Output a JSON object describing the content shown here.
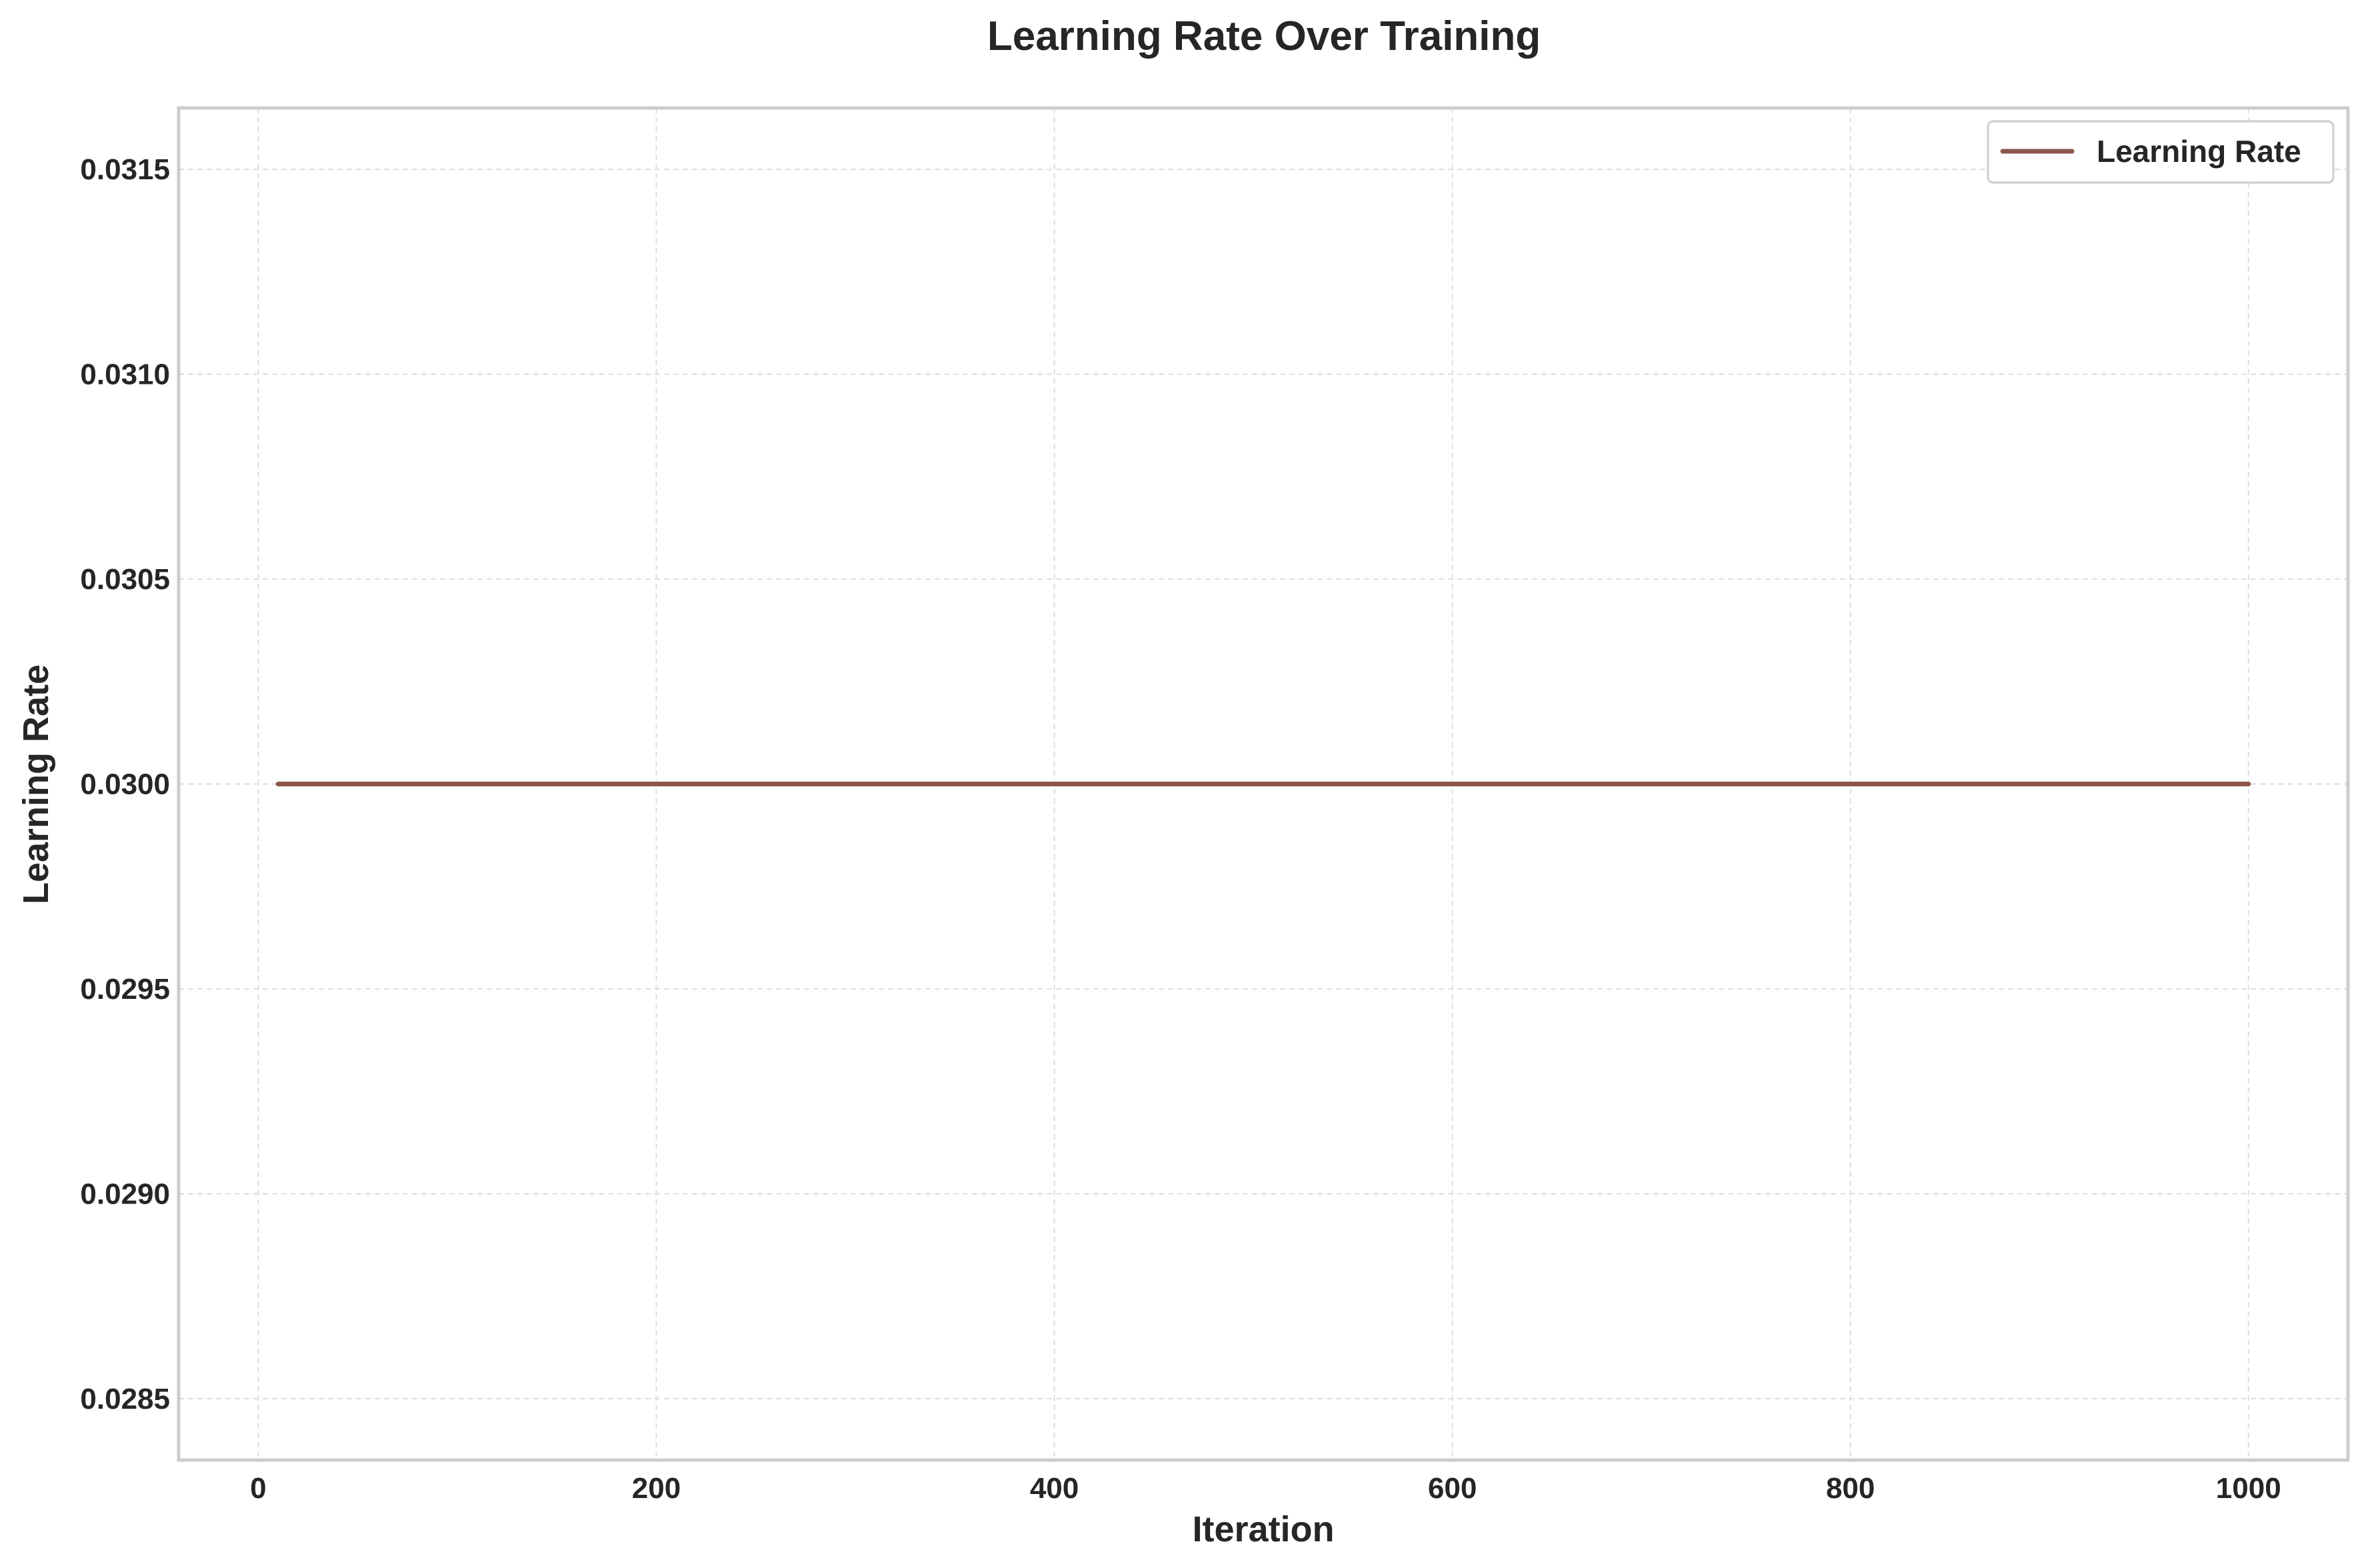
{
  "chart_data": {
    "type": "line",
    "title": "Learning Rate Over Training",
    "xlabel": "Iteration",
    "ylabel": "Learning Rate",
    "xlim": [
      -40,
      1050
    ],
    "ylim": [
      0.02835,
      0.03165
    ],
    "x_ticks": [
      0,
      200,
      400,
      600,
      800,
      1000
    ],
    "x_tick_labels": [
      "0",
      "200",
      "400",
      "600",
      "800",
      "1000"
    ],
    "y_ticks": [
      0.0285,
      0.029,
      0.0295,
      0.03,
      0.0305,
      0.031,
      0.0315
    ],
    "y_tick_labels": [
      "0.0285",
      "0.0290",
      "0.0295",
      "0.0300",
      "0.0305",
      "0.0310",
      "0.0315"
    ],
    "grid": true,
    "legend_position": "top-right",
    "series": [
      {
        "name": "Learning Rate",
        "color": "#8c564b",
        "x": [
          10,
          100,
          200,
          300,
          400,
          500,
          600,
          700,
          800,
          900,
          1000
        ],
        "y": [
          0.03,
          0.03,
          0.03,
          0.03,
          0.03,
          0.03,
          0.03,
          0.03,
          0.03,
          0.03,
          0.03
        ]
      }
    ]
  }
}
